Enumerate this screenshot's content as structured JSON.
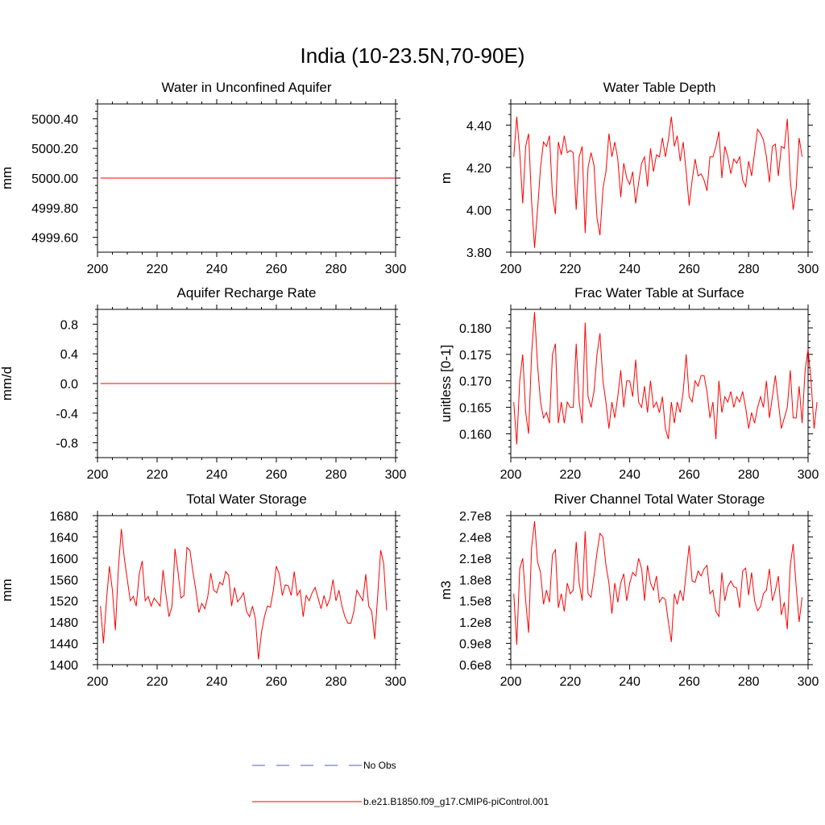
{
  "title": "India (10-23.5N,70-90E)",
  "legend": [
    {
      "label": "No Obs",
      "color": "#4a5fc1",
      "dash": "dashed"
    },
    {
      "label": "b.e21.B1850.f09_g17.CMIP6-piControl.001",
      "color": "#ff0000",
      "dash": "solid"
    }
  ],
  "chart_data": [
    {
      "type": "line",
      "title": "Water in Unconfined Aquifer",
      "ylabel": "mm",
      "xlim": [
        200,
        300
      ],
      "ylim": [
        4999.5,
        5000.5
      ],
      "xticks": [
        "200",
        "220",
        "240",
        "260",
        "280",
        "300"
      ],
      "yticks": [
        {
          "value": 4999.6,
          "label": "4999.60"
        },
        {
          "value": 4999.8,
          "label": "4999.80"
        },
        {
          "value": 5000.0,
          "label": "5000.00"
        },
        {
          "value": 5000.2,
          "label": "5000.20"
        },
        {
          "value": 5000.4,
          "label": "5000.40"
        }
      ],
      "series": [
        {
          "name": "b.e21.B1850.f09_g17.CMIP6-piControl.001",
          "color": "#ff0000",
          "x_start": 201,
          "x_step": 1,
          "values": [
            5000,
            5000
          ]
        }
      ],
      "constant_x": [
        201,
        300
      ]
    },
    {
      "type": "line",
      "title": "Water Table Depth",
      "ylabel": "m",
      "xlim": [
        200,
        300
      ],
      "ylim": [
        3.8,
        4.5
      ],
      "xticks": [
        "200",
        "220",
        "240",
        "260",
        "280",
        "300"
      ],
      "yticks": [
        {
          "value": 3.8,
          "label": "3.80"
        },
        {
          "value": 4.0,
          "label": "4.00"
        },
        {
          "value": 4.2,
          "label": "4.20"
        },
        {
          "value": 4.4,
          "label": "4.40"
        }
      ],
      "series": [
        {
          "name": "b.e21.B1850.f09_g17.CMIP6-piControl.001",
          "color": "#ff0000",
          "x_start": 201,
          "x_step": 1,
          "values": [
            4.25,
            4.44,
            4.27,
            4.03,
            4.3,
            4.36,
            4.04,
            3.82,
            4.0,
            4.2,
            4.32,
            4.3,
            4.35,
            4.07,
            3.98,
            4.32,
            4.26,
            4.35,
            4.27,
            4.28,
            4.27,
            4.0,
            4.25,
            4.3,
            3.89,
            4.2,
            4.27,
            4.21,
            3.96,
            3.88,
            4.1,
            4.18,
            4.36,
            4.25,
            4.32,
            4.24,
            4.06,
            4.22,
            4.15,
            4.12,
            4.18,
            4.03,
            4.13,
            4.22,
            4.25,
            4.11,
            4.29,
            4.18,
            4.26,
            4.25,
            4.34,
            4.25,
            4.33,
            4.44,
            4.3,
            4.35,
            4.23,
            4.32,
            4.18,
            4.02,
            4.14,
            4.24,
            4.16,
            4.17,
            4.14,
            4.09,
            4.25,
            4.25,
            4.3,
            4.37,
            4.15,
            4.3,
            4.25,
            4.17,
            4.24,
            4.22,
            4.25,
            4.14,
            4.11,
            4.23,
            4.16,
            4.27,
            4.38,
            4.36,
            4.33,
            4.25,
            4.13,
            4.3,
            4.31,
            4.16,
            4.3,
            4.29,
            4.43,
            4.14,
            4.0,
            4.1,
            4.34,
            4.25
          ]
        }
      ]
    },
    {
      "type": "line",
      "title": "Aquifer Recharge Rate",
      "ylabel": "mm/d",
      "xlim": [
        200,
        300
      ],
      "ylim": [
        -1.0,
        1.0
      ],
      "xticks": [
        "200",
        "220",
        "240",
        "260",
        "280",
        "300"
      ],
      "yticks": [
        {
          "value": -0.8,
          "label": "-0.8"
        },
        {
          "value": -0.4,
          "label": "-0.4"
        },
        {
          "value": 0.0,
          "label": "0.0"
        },
        {
          "value": 0.4,
          "label": "0.4"
        },
        {
          "value": 0.8,
          "label": "0.8"
        }
      ],
      "series": [
        {
          "name": "b.e21.B1850.f09_g17.CMIP6-piControl.001",
          "color": "#ff0000",
          "x_start": 201,
          "x_step": 1,
          "values": [
            0,
            0
          ]
        }
      ],
      "constant_x": [
        201,
        300
      ]
    },
    {
      "type": "line",
      "title": "Frac Water Table at Surface",
      "ylabel": "unitless [0-1]",
      "xlim": [
        200,
        300
      ],
      "ylim": [
        0.1555,
        0.1835
      ],
      "xticks": [
        "200",
        "220",
        "240",
        "260",
        "280",
        "300"
      ],
      "yticks": [
        {
          "value": 0.16,
          "label": "0.160"
        },
        {
          "value": 0.165,
          "label": "0.165"
        },
        {
          "value": 0.17,
          "label": "0.170"
        },
        {
          "value": 0.175,
          "label": "0.175"
        },
        {
          "value": 0.18,
          "label": "0.180"
        }
      ],
      "series": [
        {
          "name": "b.e21.B1850.f09_g17.CMIP6-piControl.001",
          "color": "#ff0000",
          "x_start": 201,
          "x_step": 1,
          "values": [
            0.166,
            0.158,
            0.17,
            0.175,
            0.164,
            0.16,
            0.175,
            0.183,
            0.173,
            0.166,
            0.163,
            0.164,
            0.162,
            0.175,
            0.177,
            0.162,
            0.166,
            0.162,
            0.166,
            0.165,
            0.165,
            0.177,
            0.166,
            0.162,
            0.181,
            0.167,
            0.165,
            0.168,
            0.175,
            0.179,
            0.17,
            0.166,
            0.161,
            0.166,
            0.163,
            0.167,
            0.172,
            0.165,
            0.17,
            0.17,
            0.167,
            0.174,
            0.166,
            0.165,
            0.169,
            0.164,
            0.17,
            0.165,
            0.166,
            0.164,
            0.167,
            0.161,
            0.159,
            0.166,
            0.162,
            0.166,
            0.164,
            0.168,
            0.175,
            0.167,
            0.166,
            0.17,
            0.169,
            0.171,
            0.171,
            0.168,
            0.163,
            0.166,
            0.159,
            0.17,
            0.164,
            0.167,
            0.166,
            0.168,
            0.165,
            0.167,
            0.166,
            0.168,
            0.165,
            0.161,
            0.164,
            0.162,
            0.165,
            0.167,
            0.165,
            0.17,
            0.163,
            0.167,
            0.171,
            0.166,
            0.161,
            0.163,
            0.165,
            0.172,
            0.163,
            0.163,
            0.169,
            0.162,
            0.172,
            0.176,
            0.17,
            0.161,
            0.166
          ]
        }
      ]
    },
    {
      "type": "line",
      "title": "Total Water Storage",
      "ylabel": "mm",
      "xlim": [
        200,
        300
      ],
      "ylim": [
        1400,
        1680
      ],
      "xticks": [
        "200",
        "220",
        "240",
        "260",
        "280",
        "300"
      ],
      "yticks": [
        {
          "value": 1400,
          "label": "1400"
        },
        {
          "value": 1440,
          "label": "1440"
        },
        {
          "value": 1480,
          "label": "1480"
        },
        {
          "value": 1520,
          "label": "1520"
        },
        {
          "value": 1560,
          "label": "1560"
        },
        {
          "value": 1600,
          "label": "1600"
        },
        {
          "value": 1640,
          "label": "1640"
        },
        {
          "value": 1680,
          "label": "1680"
        }
      ],
      "series": [
        {
          "name": "b.e21.B1850.f09_g17.CMIP6-piControl.001",
          "color": "#ff0000",
          "x_start": 201,
          "x_step": 1,
          "values": [
            1510,
            1440,
            1520,
            1585,
            1540,
            1465,
            1580,
            1655,
            1600,
            1560,
            1520,
            1528,
            1510,
            1570,
            1595,
            1520,
            1528,
            1510,
            1525,
            1518,
            1510,
            1578,
            1530,
            1490,
            1510,
            1618,
            1575,
            1525,
            1530,
            1620,
            1615,
            1575,
            1540,
            1498,
            1515,
            1505,
            1528,
            1572,
            1540,
            1535,
            1555,
            1550,
            1575,
            1568,
            1510,
            1545,
            1518,
            1525,
            1535,
            1500,
            1490,
            1510,
            1485,
            1410,
            1460,
            1490,
            1510,
            1508,
            1540,
            1585,
            1570,
            1530,
            1550,
            1548,
            1530,
            1575,
            1530,
            1540,
            1490,
            1530,
            1520,
            1535,
            1545,
            1525,
            1505,
            1530,
            1510,
            1525,
            1560,
            1520,
            1540,
            1510,
            1490,
            1478,
            1478,
            1500,
            1540,
            1530,
            1520,
            1570,
            1510,
            1500,
            1448,
            1530,
            1615,
            1590,
            1502
          ]
        }
      ]
    },
    {
      "type": "line",
      "title": "River Channel Total Water Storage",
      "ylabel": "m3",
      "xlim": [
        200,
        300
      ],
      "ylim": [
        60000000,
        270000000
      ],
      "xticks": [
        "200",
        "220",
        "240",
        "260",
        "280",
        "300"
      ],
      "yticks": [
        {
          "value": 60000000,
          "label": "0.6e8"
        },
        {
          "value": 90000000,
          "label": "0.9e8"
        },
        {
          "value": 120000000,
          "label": "1.2e8"
        },
        {
          "value": 150000000,
          "label": "1.5e8"
        },
        {
          "value": 180000000,
          "label": "1.8e8"
        },
        {
          "value": 210000000,
          "label": "2.1e8"
        },
        {
          "value": 240000000,
          "label": "2.4e8"
        },
        {
          "value": 270000000,
          "label": "2.7e8"
        }
      ],
      "series": [
        {
          "name": "b.e21.B1850.f09_g17.CMIP6-piControl.001",
          "color": "#ff0000",
          "x_start": 201,
          "x_step": 1,
          "values": [
            160000000,
            88000000,
            195000000,
            210000000,
            150000000,
            105000000,
            225000000,
            262000000,
            205000000,
            190000000,
            145000000,
            165000000,
            148000000,
            215000000,
            222000000,
            140000000,
            160000000,
            135000000,
            175000000,
            160000000,
            165000000,
            233000000,
            175000000,
            150000000,
            248000000,
            160000000,
            155000000,
            185000000,
            218000000,
            245000000,
            240000000,
            200000000,
            175000000,
            132000000,
            175000000,
            148000000,
            175000000,
            188000000,
            150000000,
            175000000,
            190000000,
            185000000,
            210000000,
            195000000,
            150000000,
            200000000,
            175000000,
            165000000,
            185000000,
            148000000,
            155000000,
            152000000,
            120000000,
            92000000,
            160000000,
            145000000,
            165000000,
            150000000,
            190000000,
            228000000,
            178000000,
            176000000,
            192000000,
            185000000,
            195000000,
            200000000,
            160000000,
            165000000,
            135000000,
            128000000,
            190000000,
            150000000,
            170000000,
            178000000,
            170000000,
            168000000,
            140000000,
            192000000,
            196000000,
            158000000,
            190000000,
            150000000,
            136000000,
            142000000,
            160000000,
            165000000,
            195000000,
            150000000,
            165000000,
            185000000,
            130000000,
            148000000,
            110000000,
            200000000,
            230000000,
            170000000,
            120000000,
            155000000
          ]
        }
      ]
    }
  ]
}
